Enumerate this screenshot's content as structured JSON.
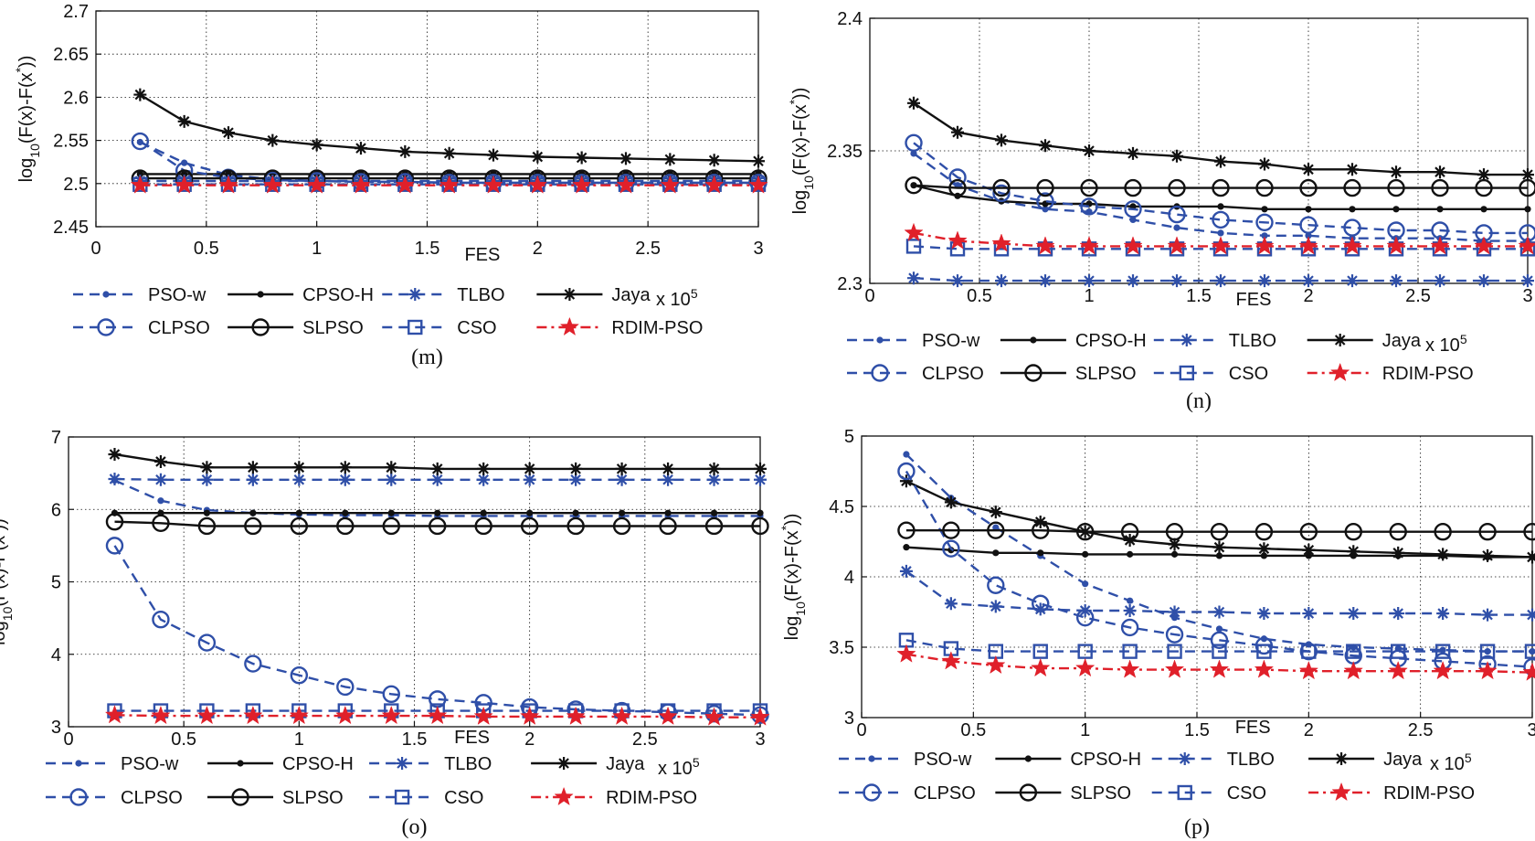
{
  "figure": {
    "x_unit_label": "x 10",
    "x_unit_exp": "5",
    "legend_rows": [
      [
        "PSO-w",
        "CPSO-H",
        "TLBO",
        "Jaya"
      ],
      [
        "CLPSO",
        "SLPSO",
        "CSO",
        "RDIM-PSO"
      ]
    ]
  },
  "chart_data": [
    {
      "type": "line",
      "caption": "(m)",
      "xlabel": "FES",
      "ylabel": "log10(F(x)-F(x*))",
      "xlim": [
        0,
        3
      ],
      "ylim": [
        2.45,
        2.7
      ],
      "x_ticks": [
        "0",
        "0.5",
        "1",
        "1.5",
        "2",
        "2.5",
        "3"
      ],
      "y_ticks": [
        "2.45",
        "2.5",
        "2.55",
        "2.6",
        "2.65",
        "2.7"
      ],
      "grid": true,
      "legend_position": "bottom",
      "x": [
        0.2,
        0.4,
        0.6,
        0.8,
        1.0,
        1.2,
        1.4,
        1.6,
        1.8,
        2.0,
        2.2,
        2.4,
        2.6,
        2.8,
        3.0
      ],
      "series": [
        {
          "name": "PSO-w",
          "color": "#2f4fa8",
          "dash": "dashed",
          "marker": "dot",
          "values": [
            2.548,
            2.524,
            2.51,
            2.505,
            2.503,
            2.502,
            2.502,
            2.501,
            2.501,
            2.501,
            2.501,
            2.501,
            2.501,
            2.501,
            2.501
          ]
        },
        {
          "name": "CPSO-H",
          "color": "#111111",
          "dash": "solid",
          "marker": "dot",
          "values": [
            2.511,
            2.511,
            2.511,
            2.511,
            2.511,
            2.511,
            2.511,
            2.511,
            2.511,
            2.511,
            2.511,
            2.511,
            2.511,
            2.511,
            2.511
          ]
        },
        {
          "name": "TLBO",
          "color": "#2f4fa8",
          "dash": "dashed",
          "marker": "asterisk",
          "values": [
            2.503,
            2.503,
            2.503,
            2.503,
            2.503,
            2.503,
            2.503,
            2.503,
            2.503,
            2.503,
            2.503,
            2.503,
            2.503,
            2.503,
            2.503
          ]
        },
        {
          "name": "Jaya",
          "color": "#111111",
          "dash": "solid",
          "marker": "asterisk",
          "values": [
            2.603,
            2.572,
            2.559,
            2.55,
            2.545,
            2.541,
            2.537,
            2.535,
            2.533,
            2.531,
            2.53,
            2.529,
            2.528,
            2.527,
            2.526
          ]
        },
        {
          "name": "CLPSO",
          "color": "#2f4fa8",
          "dash": "dashed",
          "marker": "circle",
          "values": [
            2.549,
            2.515,
            2.507,
            2.504,
            2.503,
            2.502,
            2.502,
            2.501,
            2.501,
            2.501,
            2.501,
            2.501,
            2.501,
            2.501,
            2.501
          ]
        },
        {
          "name": "SLPSO",
          "color": "#111111",
          "dash": "solid",
          "marker": "circle",
          "values": [
            2.506,
            2.506,
            2.506,
            2.506,
            2.506,
            2.506,
            2.506,
            2.506,
            2.506,
            2.506,
            2.506,
            2.506,
            2.506,
            2.506,
            2.506
          ]
        },
        {
          "name": "CSO",
          "color": "#2f4fa8",
          "dash": "dashed",
          "marker": "square",
          "values": [
            2.499,
            2.499,
            2.499,
            2.499,
            2.499,
            2.499,
            2.499,
            2.499,
            2.499,
            2.499,
            2.499,
            2.499,
            2.499,
            2.499,
            2.499
          ]
        },
        {
          "name": "RDIM-PSO",
          "color": "#e0202a",
          "dash": "dashdot",
          "marker": "star",
          "values": [
            2.498,
            2.498,
            2.498,
            2.498,
            2.498,
            2.498,
            2.498,
            2.498,
            2.498,
            2.498,
            2.498,
            2.498,
            2.498,
            2.498,
            2.498
          ]
        }
      ]
    },
    {
      "type": "line",
      "caption": "(n)",
      "xlabel": "FES",
      "ylabel": "log10(F(x)-F(x*))",
      "xlim": [
        0,
        3
      ],
      "ylim": [
        2.3,
        2.4
      ],
      "x_ticks": [
        "0",
        "0.5",
        "1",
        "1.5",
        "2",
        "2.5",
        "3"
      ],
      "y_ticks": [
        "2.3",
        "2.35",
        "2.4"
      ],
      "grid": true,
      "legend_position": "bottom",
      "x": [
        0.2,
        0.4,
        0.6,
        0.8,
        1.0,
        1.2,
        1.4,
        1.6,
        1.8,
        2.0,
        2.2,
        2.4,
        2.6,
        2.8,
        3.0
      ],
      "series": [
        {
          "name": "PSO-w",
          "color": "#2f4fa8",
          "dash": "dashed",
          "marker": "dot",
          "values": [
            2.349,
            2.337,
            2.331,
            2.328,
            2.327,
            2.324,
            2.321,
            2.319,
            2.318,
            2.318,
            2.317,
            2.317,
            2.317,
            2.316,
            2.316
          ]
        },
        {
          "name": "CPSO-H",
          "color": "#111111",
          "dash": "solid",
          "marker": "dot",
          "values": [
            2.337,
            2.333,
            2.331,
            2.33,
            2.33,
            2.329,
            2.329,
            2.329,
            2.328,
            2.328,
            2.328,
            2.328,
            2.328,
            2.328,
            2.328
          ]
        },
        {
          "name": "TLBO",
          "color": "#2f4fa8",
          "dash": "dashed",
          "marker": "asterisk",
          "values": [
            2.302,
            2.301,
            2.301,
            2.301,
            2.301,
            2.301,
            2.301,
            2.301,
            2.301,
            2.301,
            2.301,
            2.301,
            2.301,
            2.301,
            2.301
          ]
        },
        {
          "name": "Jaya",
          "color": "#111111",
          "dash": "solid",
          "marker": "asterisk",
          "values": [
            2.368,
            2.357,
            2.354,
            2.352,
            2.35,
            2.349,
            2.348,
            2.346,
            2.345,
            2.343,
            2.343,
            2.342,
            2.342,
            2.341,
            2.341
          ]
        },
        {
          "name": "CLPSO",
          "color": "#2f4fa8",
          "dash": "dashed",
          "marker": "circle",
          "values": [
            2.353,
            2.34,
            2.334,
            2.331,
            2.329,
            2.328,
            2.326,
            2.324,
            2.323,
            2.322,
            2.321,
            2.32,
            2.32,
            2.319,
            2.319
          ]
        },
        {
          "name": "SLPSO",
          "color": "#111111",
          "dash": "solid",
          "marker": "circle",
          "values": [
            2.337,
            2.336,
            2.336,
            2.336,
            2.336,
            2.336,
            2.336,
            2.336,
            2.336,
            2.336,
            2.336,
            2.336,
            2.336,
            2.336,
            2.336
          ]
        },
        {
          "name": "CSO",
          "color": "#2f4fa8",
          "dash": "dashed",
          "marker": "square",
          "values": [
            2.314,
            2.313,
            2.313,
            2.313,
            2.313,
            2.313,
            2.313,
            2.313,
            2.313,
            2.313,
            2.313,
            2.313,
            2.313,
            2.313,
            2.313
          ]
        },
        {
          "name": "RDIM-PSO",
          "color": "#e0202a",
          "dash": "dashdot",
          "marker": "star",
          "values": [
            2.319,
            2.316,
            2.315,
            2.314,
            2.314,
            2.314,
            2.314,
            2.314,
            2.314,
            2.314,
            2.314,
            2.314,
            2.314,
            2.314,
            2.314
          ]
        }
      ]
    },
    {
      "type": "line",
      "caption": "(o)",
      "xlabel": "FES",
      "ylabel": "log10(F(x)-F(x*))",
      "xlim": [
        0,
        3
      ],
      "ylim": [
        3,
        7
      ],
      "x_ticks": [
        "0",
        "0.5",
        "1",
        "1.5",
        "2",
        "2.5",
        "3"
      ],
      "y_ticks": [
        "3",
        "4",
        "5",
        "6",
        "7"
      ],
      "grid": true,
      "legend_position": "bottom",
      "x": [
        0.2,
        0.4,
        0.6,
        0.8,
        1.0,
        1.2,
        1.4,
        1.6,
        1.8,
        2.0,
        2.2,
        2.4,
        2.6,
        2.8,
        3.0
      ],
      "series": [
        {
          "name": "PSO-w",
          "color": "#2f4fa8",
          "dash": "dashed",
          "marker": "dot",
          "values": [
            6.4,
            6.12,
            5.99,
            5.95,
            5.93,
            5.92,
            5.92,
            5.91,
            5.91,
            5.91,
            5.91,
            5.91,
            5.91,
            5.91,
            5.91
          ]
        },
        {
          "name": "CPSO-H",
          "color": "#111111",
          "dash": "solid",
          "marker": "dot",
          "values": [
            5.95,
            5.95,
            5.95,
            5.95,
            5.95,
            5.95,
            5.95,
            5.95,
            5.95,
            5.95,
            5.95,
            5.95,
            5.95,
            5.95,
            5.95
          ]
        },
        {
          "name": "TLBO",
          "color": "#2f4fa8",
          "dash": "dashed",
          "marker": "asterisk",
          "values": [
            6.42,
            6.41,
            6.41,
            6.41,
            6.41,
            6.41,
            6.41,
            6.41,
            6.41,
            6.41,
            6.41,
            6.41,
            6.41,
            6.41,
            6.41
          ]
        },
        {
          "name": "Jaya",
          "color": "#111111",
          "dash": "solid",
          "marker": "asterisk",
          "values": [
            6.76,
            6.66,
            6.58,
            6.58,
            6.58,
            6.58,
            6.58,
            6.56,
            6.56,
            6.56,
            6.56,
            6.56,
            6.56,
            6.56,
            6.56
          ]
        },
        {
          "name": "CLPSO",
          "color": "#2f4fa8",
          "dash": "dashed",
          "marker": "circle",
          "values": [
            5.5,
            4.48,
            4.16,
            3.87,
            3.71,
            3.55,
            3.45,
            3.38,
            3.33,
            3.27,
            3.24,
            3.22,
            3.2,
            3.18,
            3.16
          ]
        },
        {
          "name": "SLPSO",
          "color": "#111111",
          "dash": "solid",
          "marker": "circle",
          "values": [
            5.83,
            5.81,
            5.77,
            5.77,
            5.77,
            5.77,
            5.77,
            5.77,
            5.77,
            5.77,
            5.77,
            5.77,
            5.77,
            5.77,
            5.77
          ]
        },
        {
          "name": "CSO",
          "color": "#2f4fa8",
          "dash": "dashed",
          "marker": "square",
          "values": [
            3.22,
            3.22,
            3.22,
            3.22,
            3.22,
            3.22,
            3.22,
            3.22,
            3.22,
            3.22,
            3.22,
            3.22,
            3.22,
            3.22,
            3.22
          ]
        },
        {
          "name": "RDIM-PSO",
          "color": "#e0202a",
          "dash": "dashdot",
          "marker": "star",
          "values": [
            3.16,
            3.15,
            3.15,
            3.15,
            3.15,
            3.15,
            3.15,
            3.15,
            3.14,
            3.14,
            3.14,
            3.14,
            3.14,
            3.13,
            3.13
          ]
        }
      ]
    },
    {
      "type": "line",
      "caption": "(p)",
      "xlabel": "FES",
      "ylabel": "log10(F(x)-F(x*))",
      "xlim": [
        0,
        3
      ],
      "ylim": [
        3,
        5
      ],
      "x_ticks": [
        "0",
        "0.5",
        "1",
        "1.5",
        "2",
        "2.5",
        "3"
      ],
      "y_ticks": [
        "3",
        "3.5",
        "4",
        "4.5",
        "5"
      ],
      "grid": true,
      "legend_position": "bottom",
      "x": [
        0.2,
        0.4,
        0.6,
        0.8,
        1.0,
        1.2,
        1.4,
        1.6,
        1.8,
        2.0,
        2.2,
        2.4,
        2.6,
        2.8,
        3.0
      ],
      "series": [
        {
          "name": "PSO-w",
          "color": "#2f4fa8",
          "dash": "dashed",
          "marker": "dot",
          "values": [
            4.87,
            4.56,
            4.35,
            4.15,
            3.95,
            3.83,
            3.71,
            3.63,
            3.56,
            3.52,
            3.5,
            3.49,
            3.48,
            3.47,
            3.47
          ]
        },
        {
          "name": "CPSO-H",
          "color": "#111111",
          "dash": "solid",
          "marker": "dot",
          "values": [
            4.21,
            4.19,
            4.17,
            4.17,
            4.16,
            4.16,
            4.16,
            4.15,
            4.15,
            4.15,
            4.15,
            4.15,
            4.15,
            4.14,
            4.14
          ]
        },
        {
          "name": "TLBO",
          "color": "#2f4fa8",
          "dash": "dashed",
          "marker": "asterisk",
          "values": [
            4.04,
            3.81,
            3.79,
            3.77,
            3.76,
            3.76,
            3.75,
            3.75,
            3.74,
            3.74,
            3.74,
            3.74,
            3.74,
            3.73,
            3.73
          ]
        },
        {
          "name": "Jaya",
          "color": "#111111",
          "dash": "solid",
          "marker": "asterisk",
          "values": [
            4.68,
            4.53,
            4.46,
            4.39,
            4.32,
            4.26,
            4.23,
            4.21,
            4.2,
            4.19,
            4.18,
            4.17,
            4.16,
            4.15,
            4.14
          ]
        },
        {
          "name": "CLPSO",
          "color": "#2f4fa8",
          "dash": "dashed",
          "marker": "circle",
          "values": [
            4.75,
            4.2,
            3.94,
            3.81,
            3.71,
            3.64,
            3.59,
            3.55,
            3.51,
            3.47,
            3.44,
            3.42,
            3.4,
            3.38,
            3.36
          ]
        },
        {
          "name": "SLPSO",
          "color": "#111111",
          "dash": "solid",
          "marker": "circle",
          "values": [
            4.33,
            4.33,
            4.33,
            4.33,
            4.32,
            4.32,
            4.32,
            4.32,
            4.32,
            4.32,
            4.32,
            4.32,
            4.32,
            4.32,
            4.32
          ]
        },
        {
          "name": "CSO",
          "color": "#2f4fa8",
          "dash": "dashed",
          "marker": "square",
          "values": [
            3.55,
            3.49,
            3.47,
            3.47,
            3.47,
            3.47,
            3.47,
            3.47,
            3.47,
            3.47,
            3.47,
            3.47,
            3.47,
            3.47,
            3.47
          ]
        },
        {
          "name": "RDIM-PSO",
          "color": "#e0202a",
          "dash": "dashdot",
          "marker": "star",
          "values": [
            3.45,
            3.4,
            3.37,
            3.35,
            3.35,
            3.34,
            3.34,
            3.34,
            3.34,
            3.33,
            3.33,
            3.33,
            3.33,
            3.33,
            3.32
          ]
        }
      ]
    }
  ]
}
